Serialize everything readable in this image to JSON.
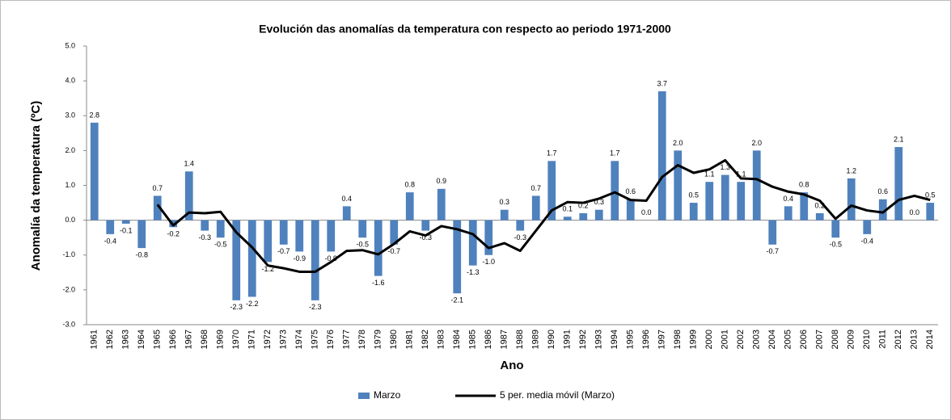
{
  "chart_data": {
    "type": "bar-line",
    "title": "Evolución das anomalías da temperatura con respecto ao periodo 1971-2000",
    "x_label": "Ano",
    "y_label": "Anomalía da temperatura (ºC)",
    "categories": [
      "1961",
      "1962",
      "1963",
      "1964",
      "1965",
      "1966",
      "1967",
      "1968",
      "1969",
      "1970",
      "1971",
      "1972",
      "1973",
      "1974",
      "1975",
      "1976",
      "1977",
      "1978",
      "1979",
      "1980",
      "1981",
      "1982",
      "1983",
      "1984",
      "1985",
      "1986",
      "1987",
      "1988",
      "1989",
      "1990",
      "1991",
      "1992",
      "1993",
      "1994",
      "1995",
      "1996",
      "1997",
      "1998",
      "1999",
      "2000",
      "2001",
      "2002",
      "2003",
      "2004",
      "2005",
      "2006",
      "2007",
      "2008",
      "2009",
      "2010",
      "2011",
      "2012",
      "2013",
      "2014"
    ],
    "series": [
      {
        "name": "Marzo",
        "type": "bar",
        "color": "#4f81bd",
        "values": [
          2.8,
          -0.4,
          -0.1,
          -0.8,
          0.7,
          -0.2,
          1.4,
          -0.3,
          -0.5,
          -2.3,
          -2.2,
          -1.2,
          -0.7,
          -0.9,
          -2.3,
          -0.9,
          0.4,
          -0.5,
          -1.6,
          -0.7,
          0.8,
          -0.3,
          0.9,
          -2.1,
          -1.3,
          -1.0,
          0.3,
          -0.3,
          0.7,
          1.7,
          0.1,
          0.2,
          0.3,
          1.7,
          0.6,
          0.0,
          3.7,
          2.0,
          0.5,
          1.1,
          1.3,
          1.1,
          2.0,
          -0.7,
          0.4,
          0.8,
          0.2,
          -0.5,
          1.2,
          -0.4,
          0.6,
          2.1,
          0.0,
          0.5
        ],
        "value_labels": [
          "2.8",
          "-0.4",
          "-0.1",
          "-0.8",
          "0.7",
          "-0.2",
          "1.4",
          "-0.3",
          "-0.5",
          "-2.3",
          "-2.2",
          "-1.2",
          "-0.7",
          "-0.9",
          "-2.3",
          "-0.9",
          "0.4",
          "-0.5",
          "-1.6",
          "-0.7",
          "0.8",
          "-0.3",
          "0.9",
          "-2.1",
          "-1.3",
          "-1.0",
          "0.3",
          "-0.3",
          "0.7",
          "1.7",
          "0.1",
          "0.2",
          "0.3",
          "1.7",
          "0.6",
          "0.0",
          "3.7",
          "2.0",
          "0.5",
          "1.1",
          "1.3",
          "1.1",
          "2.0",
          "-0.7",
          "0.4",
          "0.8",
          "0.2",
          "-0.5",
          "1.2",
          "-0.4",
          "0.6",
          "2.1",
          "0.0",
          "0.5"
        ]
      },
      {
        "name": "5 per. media móvil (Marzo)",
        "type": "line",
        "color": "#000000",
        "values": [
          null,
          null,
          null,
          null,
          0.45,
          -0.15,
          0.22,
          0.2,
          0.24,
          -0.35,
          -0.78,
          -1.3,
          -1.38,
          -1.48,
          -1.48,
          -1.2,
          -0.88,
          -0.86,
          -0.98,
          -0.68,
          -0.32,
          -0.44,
          -0.17,
          -0.26,
          -0.4,
          -0.8,
          -0.66,
          -0.88,
          -0.3,
          0.28,
          0.52,
          0.5,
          0.62,
          0.8,
          0.58,
          0.56,
          1.24,
          1.58,
          1.36,
          1.46,
          1.72,
          1.2,
          1.18,
          0.96,
          0.82,
          0.74,
          0.56,
          0.04,
          0.42,
          0.28,
          0.22,
          0.58,
          0.7,
          0.58
        ]
      }
    ],
    "ylim": [
      -3,
      5
    ],
    "yticks": [
      {
        "value": -3,
        "label": "-3.0"
      },
      {
        "value": -2,
        "label": "-2.0"
      },
      {
        "value": -1,
        "label": "-1.0"
      },
      {
        "value": 0,
        "label": "0.0"
      },
      {
        "value": 1,
        "label": "1.0"
      },
      {
        "value": 2,
        "label": "2.0"
      },
      {
        "value": 3,
        "label": "3.0"
      },
      {
        "value": 4,
        "label": "4.0"
      },
      {
        "value": 5,
        "label": "5.0"
      }
    ],
    "grid": false,
    "legend": "bottom"
  }
}
